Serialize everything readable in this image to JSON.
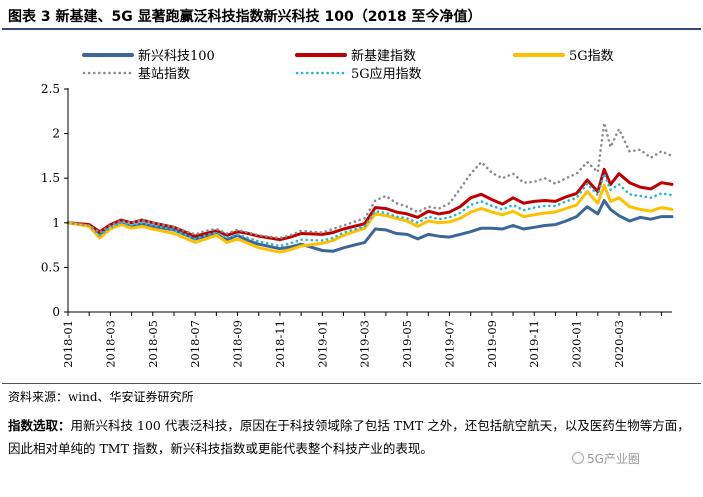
{
  "header": {
    "title": "图表 3 新基建、5G 显著跑赢泛科技指数新兴科技 100（2018 至今净值）"
  },
  "footer": {
    "source": "资料来源：wind、华安证券研究所",
    "note_label": "指数选取：",
    "note_text": "用新兴科技 100 代表泛科技，原因在于科技领域除了包括 TMT 之外，还包括航空航天，以及医药生物等方面，因此相对单纯的 TMT 指数，新兴科技指数或更能代表整个科技产业的表现。",
    "watermark": "5G产业圈"
  },
  "colors": {
    "s1": "#3b6699",
    "s2": "#c00000",
    "s3": "#ffc000",
    "s4": "#8c8c8c",
    "s5": "#22b5d8",
    "axis": "#000000"
  },
  "chart_data": {
    "type": "line",
    "ylim": [
      0,
      2.5
    ],
    "y_ticks": [
      "0",
      "0.5",
      "1",
      "1.5",
      "2",
      "2.5"
    ],
    "x_ticks": [
      "2018-01",
      "2018-03",
      "2018-05",
      "2018-07",
      "2018-09",
      "2018-11",
      "2019-01",
      "2019-03",
      "2019-05",
      "2019-07",
      "2019-09",
      "2019-11",
      "2020-01",
      "2020-03"
    ],
    "x_range": [
      0,
      28.5
    ],
    "grid": false,
    "legend_position": "top",
    "series": [
      {
        "name": "新兴科技100",
        "color": "#3b6699",
        "style": "solid",
        "x": [
          0,
          1,
          1.5,
          2,
          2.5,
          3,
          3.5,
          4,
          5,
          6,
          6.5,
          7,
          7.5,
          8,
          8.5,
          9,
          10,
          10.5,
          11,
          12,
          12.5,
          13,
          14,
          14.5,
          15,
          15.5,
          16,
          16.5,
          17,
          17.5,
          18,
          18.5,
          19,
          19.5,
          20,
          20.5,
          21,
          21.5,
          22,
          22.5,
          23,
          23.5,
          24,
          24.5,
          25,
          25.3,
          25.6,
          26,
          26.5,
          27,
          27.5,
          28,
          28.5
        ],
        "y": [
          1.0,
          0.97,
          0.88,
          0.93,
          0.99,
          0.96,
          0.99,
          0.96,
          0.92,
          0.82,
          0.85,
          0.87,
          0.81,
          0.86,
          0.8,
          0.76,
          0.71,
          0.73,
          0.76,
          0.69,
          0.68,
          0.72,
          0.78,
          0.93,
          0.92,
          0.88,
          0.87,
          0.82,
          0.87,
          0.85,
          0.84,
          0.87,
          0.9,
          0.94,
          0.94,
          0.93,
          0.97,
          0.93,
          0.95,
          0.97,
          0.98,
          1.02,
          1.07,
          1.18,
          1.1,
          1.25,
          1.15,
          1.08,
          1.02,
          1.06,
          1.04,
          1.07,
          1.07
        ]
      },
      {
        "name": "新基建指数",
        "color": "#c00000",
        "style": "solid",
        "x": [
          0,
          1,
          1.5,
          2,
          2.5,
          3,
          3.5,
          4,
          5,
          6,
          6.5,
          7,
          7.5,
          8,
          8.5,
          9,
          10,
          10.5,
          11,
          12,
          12.5,
          13,
          14,
          14.5,
          15,
          15.5,
          16,
          16.5,
          17,
          17.5,
          18,
          18.5,
          19,
          19.5,
          20,
          20.5,
          21,
          21.5,
          22,
          22.5,
          23,
          23.5,
          24,
          24.5,
          25,
          25.3,
          25.6,
          26,
          26.5,
          27,
          27.5,
          28,
          28.5
        ],
        "y": [
          1.0,
          0.98,
          0.9,
          0.98,
          1.03,
          1.0,
          1.03,
          1.0,
          0.95,
          0.85,
          0.88,
          0.91,
          0.86,
          0.9,
          0.88,
          0.85,
          0.81,
          0.84,
          0.88,
          0.87,
          0.89,
          0.93,
          0.99,
          1.17,
          1.16,
          1.12,
          1.1,
          1.06,
          1.13,
          1.1,
          1.12,
          1.18,
          1.28,
          1.32,
          1.26,
          1.21,
          1.28,
          1.22,
          1.24,
          1.25,
          1.24,
          1.29,
          1.33,
          1.48,
          1.35,
          1.6,
          1.43,
          1.55,
          1.45,
          1.4,
          1.38,
          1.45,
          1.43
        ]
      },
      {
        "name": "5G指数",
        "color": "#ffc000",
        "style": "solid",
        "x": [
          0,
          1,
          1.5,
          2,
          2.5,
          3,
          3.5,
          4,
          5,
          6,
          6.5,
          7,
          7.5,
          8,
          8.5,
          9,
          10,
          10.5,
          11,
          12,
          12.5,
          13,
          14,
          14.5,
          15,
          15.5,
          16,
          16.5,
          17,
          17.5,
          18,
          18.5,
          19,
          19.5,
          20,
          20.5,
          21,
          21.5,
          22,
          22.5,
          23,
          23.5,
          24,
          24.5,
          25,
          25.3,
          25.6,
          26,
          26.5,
          27,
          27.5,
          28,
          28.5
        ],
        "y": [
          1.0,
          0.96,
          0.83,
          0.93,
          0.98,
          0.94,
          0.96,
          0.93,
          0.88,
          0.78,
          0.82,
          0.86,
          0.78,
          0.82,
          0.77,
          0.72,
          0.67,
          0.7,
          0.74,
          0.77,
          0.8,
          0.86,
          0.94,
          1.1,
          1.08,
          1.05,
          1.02,
          0.96,
          1.02,
          1.0,
          1.01,
          1.05,
          1.12,
          1.16,
          1.12,
          1.09,
          1.13,
          1.07,
          1.09,
          1.11,
          1.12,
          1.16,
          1.2,
          1.35,
          1.22,
          1.42,
          1.24,
          1.28,
          1.18,
          1.15,
          1.13,
          1.17,
          1.15
        ]
      },
      {
        "name": "基站指数",
        "color": "#8c8c8c",
        "style": "dotted",
        "x": [
          0,
          1,
          1.5,
          2,
          2.5,
          3,
          3.5,
          4,
          5,
          6,
          6.5,
          7,
          7.5,
          8,
          8.5,
          9,
          10,
          10.5,
          11,
          12,
          12.5,
          13,
          14,
          14.5,
          15,
          15.5,
          16,
          16.5,
          17,
          17.5,
          18,
          18.5,
          19,
          19.5,
          20,
          20.5,
          21,
          21.5,
          22,
          22.5,
          23,
          23.5,
          24,
          24.5,
          25,
          25.3,
          25.6,
          26,
          26.5,
          27,
          27.5,
          28,
          28.5
        ],
        "y": [
          1.0,
          0.97,
          0.89,
          0.97,
          1.02,
          1.0,
          1.03,
          1.0,
          0.95,
          0.87,
          0.91,
          0.93,
          0.88,
          0.92,
          0.89,
          0.86,
          0.83,
          0.86,
          0.91,
          0.89,
          0.93,
          0.97,
          1.05,
          1.25,
          1.3,
          1.22,
          1.18,
          1.12,
          1.18,
          1.16,
          1.22,
          1.38,
          1.55,
          1.68,
          1.56,
          1.5,
          1.55,
          1.45,
          1.46,
          1.5,
          1.44,
          1.5,
          1.55,
          1.68,
          1.57,
          2.12,
          1.85,
          2.05,
          1.8,
          1.82,
          1.73,
          1.8,
          1.75
        ]
      },
      {
        "name": "5G应用指数",
        "color": "#22b5d8",
        "style": "dotted",
        "x": [
          0,
          1,
          1.5,
          2,
          2.5,
          3,
          3.5,
          4,
          5,
          6,
          6.5,
          7,
          7.5,
          8,
          8.5,
          9,
          10,
          10.5,
          11,
          12,
          12.5,
          13,
          14,
          14.5,
          15,
          15.5,
          16,
          16.5,
          17,
          17.5,
          18,
          18.5,
          19,
          19.5,
          20,
          20.5,
          21,
          21.5,
          22,
          22.5,
          23,
          23.5,
          24,
          24.5,
          25,
          25.3,
          25.6,
          26,
          26.5,
          27,
          27.5,
          28,
          28.5
        ],
        "y": [
          1.0,
          0.97,
          0.86,
          0.95,
          1.0,
          0.97,
          1.0,
          0.97,
          0.92,
          0.82,
          0.86,
          0.89,
          0.83,
          0.87,
          0.83,
          0.79,
          0.74,
          0.77,
          0.81,
          0.8,
          0.83,
          0.89,
          0.96,
          1.13,
          1.11,
          1.07,
          1.05,
          1.0,
          1.07,
          1.04,
          1.06,
          1.11,
          1.2,
          1.24,
          1.19,
          1.15,
          1.2,
          1.14,
          1.17,
          1.19,
          1.19,
          1.24,
          1.28,
          1.44,
          1.31,
          1.55,
          1.37,
          1.43,
          1.32,
          1.3,
          1.28,
          1.33,
          1.31
        ]
      }
    ]
  }
}
